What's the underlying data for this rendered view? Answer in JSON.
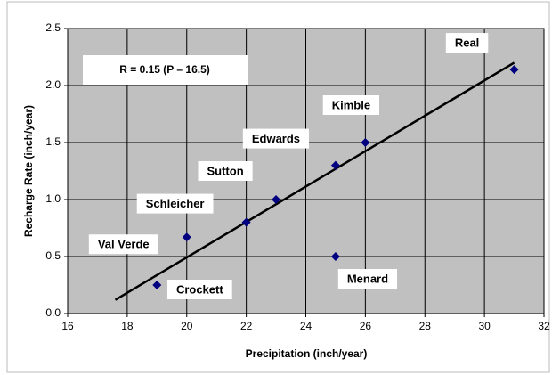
{
  "chart_data": {
    "type": "scatter",
    "x_label": "Precipitation (inch/year)",
    "y_label": "Recharge Rate (inch/year)",
    "annotation": "R = 0.15 (P – 16.5)",
    "x": [
      19,
      20,
      22,
      23,
      25,
      26,
      25,
      31
    ],
    "values": [
      0.25,
      0.67,
      0.8,
      1.0,
      1.3,
      1.5,
      0.5,
      2.14
    ],
    "point_labels": [
      "Crockett",
      "Val Verde",
      "Schleicher",
      "Sutton",
      "Edwards",
      "Kimble",
      "Menard",
      "Real"
    ],
    "color": "#000080",
    "fit": {
      "x": [
        17.6,
        31
      ],
      "values": [
        0.12,
        2.2
      ],
      "color": "#000000"
    },
    "xlim": [
      16,
      32
    ],
    "xticks": [
      16,
      18,
      20,
      22,
      24,
      26,
      28,
      30,
      32
    ],
    "ylim": [
      0,
      2.5
    ],
    "yticks": [
      {
        "value": 0,
        "label": "0.0"
      },
      0.5,
      {
        "value": 1,
        "label": "1.0"
      },
      1.5,
      {
        "value": 2,
        "label": "2.0"
      },
      2.5
    ],
    "grid": true,
    "plot_background": "#c0c0c0"
  }
}
